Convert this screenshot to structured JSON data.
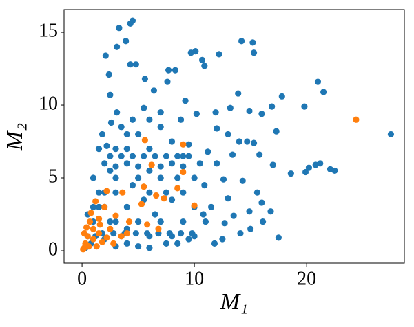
{
  "chart_data": {
    "type": "scatter",
    "xlabel": "M₁",
    "ylabel": "M₂",
    "xlim": [
      -1.6,
      28.7
    ],
    "ylim": [
      -0.85,
      16.56
    ],
    "xticks": [
      0,
      10,
      20
    ],
    "yticks": [
      0,
      5,
      10,
      15
    ],
    "grid": false,
    "series": [
      {
        "color": "#1f77b4",
        "x": [
          4.5,
          4.3,
          3.3,
          3.9,
          3.1,
          4.3,
          4.8,
          2.1,
          2.4,
          14.2,
          15.2,
          15.3,
          9.7,
          10.1,
          10.7,
          10.9,
          12.2,
          7.7,
          8.3,
          2.5,
          6.4,
          7.6,
          5.6,
          21.0,
          21.5,
          17.8,
          19.8,
          16.9,
          13.9,
          13.2,
          14.9,
          16.0,
          27.5,
          17.3,
          20.8,
          21.2,
          22.1,
          22.5,
          20.2,
          19.9,
          18.6,
          17.0,
          15.8,
          15.3,
          14.7,
          14.0,
          13.0,
          12.0,
          13.4,
          11.2,
          14.3,
          15.6,
          16.0,
          16.8,
          17.5,
          16.1,
          14.9,
          13.5,
          12.7,
          11.8,
          12.5,
          14.1,
          15.0,
          13.0,
          12.6,
          11.5,
          10.9,
          12.0,
          11.9,
          10.2,
          9.2,
          8.8,
          3.1,
          2.6,
          1.8,
          2.2,
          0.5,
          1,
          1.5,
          2,
          2,
          3,
          3,
          4,
          4,
          5,
          5,
          5,
          6,
          6,
          6,
          7,
          7,
          7,
          8,
          8,
          8,
          9,
          9,
          9,
          10,
          10,
          10,
          11,
          1,
          1.5,
          2.5,
          3.5,
          4.5,
          5.5,
          6.5,
          7.5,
          8.5,
          9.5,
          0.3,
          0.8,
          1.2,
          2,
          3,
          4,
          5,
          6,
          3,
          4,
          2,
          3,
          4,
          3.5,
          6,
          7,
          5.5,
          4.5,
          8,
          9.5,
          10.5,
          10.8,
          7.5,
          8.5,
          6,
          4,
          2.5,
          1.5,
          1,
          0.5,
          2.5,
          3.5,
          4.5,
          5.5,
          6.5,
          7.5,
          8.5,
          9.5,
          3,
          5,
          7,
          9,
          1.8,
          2.8,
          3.8,
          4.8,
          5.8,
          6.8,
          7.8,
          8.8,
          9.8
        ],
        "values": [
          15.8,
          15.6,
          15.3,
          14.4,
          14.0,
          12.8,
          12.8,
          13.4,
          12.1,
          14.4,
          14.3,
          13.6,
          13.6,
          13.7,
          13.1,
          12.7,
          13.5,
          12.4,
          12.4,
          10.7,
          11.0,
          11.6,
          11.8,
          11.6,
          10.9,
          10.6,
          9.9,
          9.9,
          10.8,
          9.8,
          9.6,
          9.4,
          8.0,
          8.2,
          5.9,
          6.0,
          5.6,
          5.5,
          5.7,
          5.4,
          5.3,
          5.9,
          6.6,
          7.4,
          7.5,
          7.5,
          8.0,
          8.4,
          6.6,
          6.8,
          4.8,
          4.0,
          3.3,
          2.7,
          0.9,
          2.0,
          2.7,
          2.4,
          1.9,
          0.5,
          0.8,
          1.2,
          1.5,
          3.6,
          4.9,
          3.0,
          4.5,
          6.0,
          9.5,
          9.4,
          10.3,
          9.0,
          9.5,
          8.8,
          8.0,
          7.2,
          1,
          2,
          3,
          4,
          6,
          5,
          7,
          3,
          6,
          2,
          5,
          8,
          1,
          4,
          7,
          2,
          5,
          8.5,
          1,
          3.5,
          6,
          2,
          4,
          6.5,
          1,
          3,
          5,
          2,
          5,
          7,
          2,
          1,
          4.5,
          3.5,
          2.5,
          0.5,
          0.5,
          0.8,
          0.2,
          0.5,
          1,
          0.8,
          0.3,
          0.5,
          0.3,
          0.2,
          2,
          1.5,
          3,
          4,
          8,
          8.5,
          9,
          9.5,
          9.8,
          9,
          7.5,
          7.3,
          6,
          2.5,
          4,
          5,
          5.5,
          7,
          5.5,
          4,
          3,
          2.5,
          6.5,
          6.5,
          6.5,
          6.5,
          6.5,
          6.5,
          6.5,
          6.5,
          5.8,
          5.8,
          5.8,
          5.8,
          1.2,
          1.2,
          1.2,
          1.2,
          1.2,
          1.2,
          1.2,
          1.2,
          1.2
        ]
      },
      {
        "color": "#ff7f0e",
        "x": [
          24.4,
          5.6,
          9.0,
          6.2,
          9.0,
          2.2,
          3.6,
          5.5,
          8.5,
          7.3,
          6.6,
          5.3,
          10.0,
          2.0,
          3.0,
          1.2,
          0.8,
          1.5,
          4.2,
          5.8,
          6.8,
          4.0,
          3.5,
          2.5,
          1.5,
          1,
          0.5,
          0.3,
          0.2,
          0.6,
          1,
          1.8,
          2.2,
          0.1,
          0.4,
          1.3,
          2.8,
          0.7,
          0.2,
          1.6
        ],
        "values": [
          9.0,
          7.6,
          7.3,
          5.9,
          5.4,
          4.1,
          4.0,
          4.4,
          4.3,
          3.6,
          3.8,
          3.2,
          3.1,
          3.0,
          2.4,
          3.4,
          2.6,
          2.2,
          2.0,
          1.8,
          1.5,
          1.2,
          1.0,
          1.5,
          1.2,
          1.5,
          1.0,
          0.5,
          0.2,
          0.3,
          0.8,
          0.6,
          0.9,
          0.1,
          1.6,
          0.3,
          0.5,
          2.0,
          1.2,
          1.8
        ]
      }
    ]
  }
}
